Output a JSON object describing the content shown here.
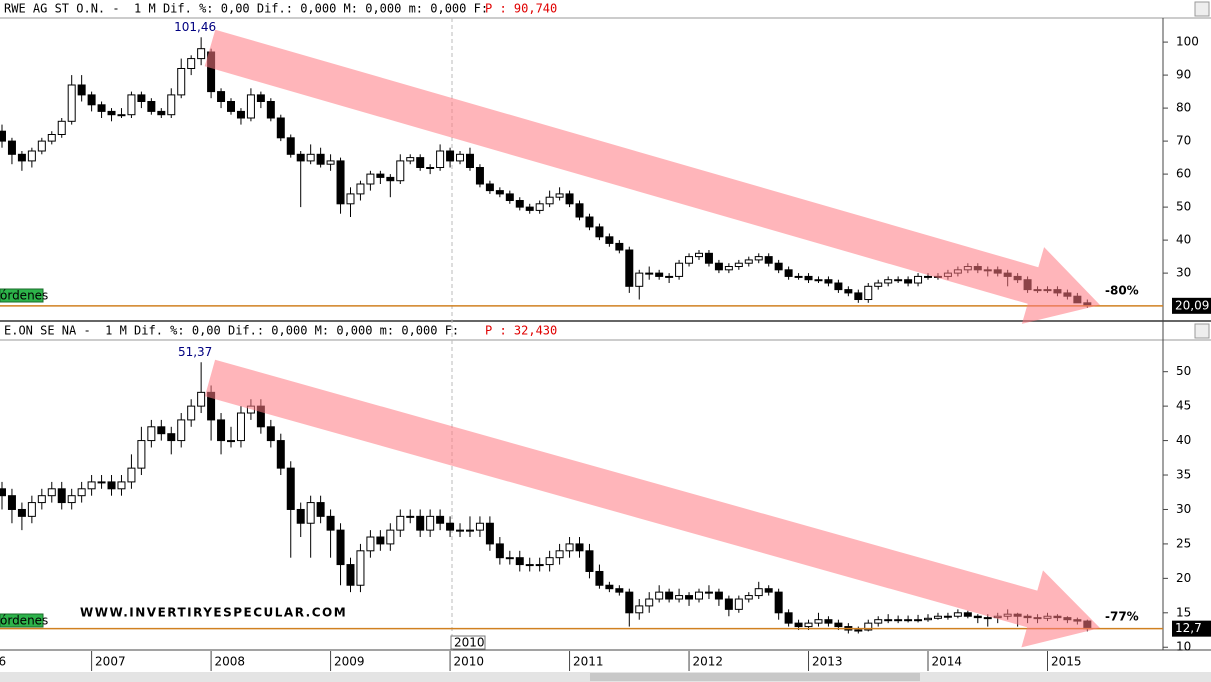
{
  "chart_data": [
    {
      "type": "candlestick",
      "title": "RWE AG ST O.N. -  1 M Dif. %: 0,00 Dif.: 0,000 M: 0,000 m: 0,000 F:",
      "price_label": "P : 90,740",
      "peak_label": "101,46",
      "change_label": "-80%",
      "last_price_label": "20,09",
      "order_label": "órdenes",
      "up_color": "#ffffff",
      "down_color": "#000000",
      "ylim": [
        16.4,
        107.3
      ],
      "yticks": [
        30,
        40,
        50,
        60,
        70,
        80,
        90,
        100
      ],
      "candles": [
        [
          73,
          75,
          68,
          70
        ],
        [
          70,
          71,
          63,
          66
        ],
        [
          66,
          67,
          61,
          64
        ],
        [
          64,
          68,
          62,
          67
        ],
        [
          67,
          71,
          66,
          70
        ],
        [
          70,
          73,
          69,
          72
        ],
        [
          72,
          77,
          71,
          76
        ],
        [
          76,
          90,
          75,
          87
        ],
        [
          87,
          90,
          82,
          84
        ],
        [
          84,
          85,
          79,
          81
        ],
        [
          81,
          82,
          77,
          79
        ],
        [
          79,
          80,
          76,
          78
        ],
        [
          78,
          80,
          77,
          78
        ],
        [
          78,
          85,
          77,
          84
        ],
        [
          84,
          85,
          80,
          82
        ],
        [
          82,
          83,
          78,
          79
        ],
        [
          79,
          80,
          77,
          78
        ],
        [
          78,
          86,
          77,
          84
        ],
        [
          84,
          95,
          83,
          92
        ],
        [
          92,
          96,
          90,
          95
        ],
        [
          95,
          101.46,
          93,
          98
        ],
        [
          97,
          98,
          83,
          85
        ],
        [
          85,
          86,
          80,
          82
        ],
        [
          82,
          83,
          78,
          79
        ],
        [
          79,
          80,
          75,
          77
        ],
        [
          77,
          86,
          76,
          84
        ],
        [
          84,
          85,
          80,
          82
        ],
        [
          82,
          83,
          76,
          77
        ],
        [
          77,
          78,
          70,
          71
        ],
        [
          71,
          72,
          65,
          66
        ],
        [
          66,
          67,
          50,
          64
        ],
        [
          64,
          69,
          63,
          66
        ],
        [
          66,
          68,
          62,
          63
        ],
        [
          63,
          66,
          61,
          64
        ],
        [
          64,
          65,
          48,
          51
        ],
        [
          51,
          56,
          47,
          54
        ],
        [
          54,
          58,
          52,
          57
        ],
        [
          57,
          61,
          55,
          60
        ],
        [
          60,
          61,
          57,
          59
        ],
        [
          59,
          60,
          53,
          58
        ],
        [
          58,
          66,
          57,
          64
        ],
        [
          64,
          66,
          63,
          65
        ],
        [
          65,
          66,
          61,
          62
        ],
        [
          62,
          63,
          60,
          62
        ],
        [
          62,
          69,
          61,
          67
        ],
        [
          67,
          68,
          62,
          64
        ],
        [
          64,
          67,
          63,
          66
        ],
        [
          66,
          68,
          61,
          62
        ],
        [
          62,
          63,
          56,
          57
        ],
        [
          57,
          58,
          54,
          55
        ],
        [
          55,
          56,
          53,
          54
        ],
        [
          54,
          55,
          51,
          52
        ],
        [
          52,
          53,
          49,
          50
        ],
        [
          50,
          51,
          48,
          49
        ],
        [
          49,
          52,
          48,
          51
        ],
        [
          51,
          55,
          50,
          53
        ],
        [
          53,
          56,
          52,
          54
        ],
        [
          54,
          55,
          50,
          51
        ],
        [
          51,
          52,
          46,
          47
        ],
        [
          47,
          48,
          43,
          44
        ],
        [
          44,
          45,
          40,
          41
        ],
        [
          41,
          42,
          38,
          39
        ],
        [
          39,
          40,
          36,
          37
        ],
        [
          37,
          38,
          24,
          26
        ],
        [
          26,
          31,
          22,
          30
        ],
        [
          30,
          32,
          28,
          30
        ],
        [
          30,
          31,
          28,
          29
        ],
        [
          29,
          30,
          27,
          29
        ],
        [
          29,
          34,
          28,
          33
        ],
        [
          33,
          36,
          32,
          35
        ],
        [
          35,
          37,
          34,
          36
        ],
        [
          36,
          37,
          32,
          33
        ],
        [
          33,
          34,
          30,
          31
        ],
        [
          31,
          33,
          30,
          32
        ],
        [
          32,
          34,
          31,
          33
        ],
        [
          33,
          35,
          32,
          34
        ],
        [
          34,
          36,
          33,
          35
        ],
        [
          35,
          36,
          32,
          33
        ],
        [
          33,
          34,
          30,
          31
        ],
        [
          31,
          32,
          28,
          29
        ],
        [
          29,
          30,
          28,
          29
        ],
        [
          29,
          30,
          27,
          28
        ],
        [
          28,
          29,
          27,
          28
        ],
        [
          28,
          29,
          26,
          27
        ],
        [
          27,
          28,
          24,
          25
        ],
        [
          25,
          26,
          23,
          24
        ],
        [
          24,
          25,
          21,
          22
        ],
        [
          22,
          27,
          21,
          26
        ],
        [
          26,
          28,
          25,
          27
        ],
        [
          27,
          29,
          26,
          28
        ],
        [
          28,
          29,
          27,
          28
        ],
        [
          28,
          29,
          26,
          27
        ],
        [
          27,
          30,
          26,
          29
        ],
        [
          29,
          30,
          28,
          29
        ],
        [
          29,
          30,
          28,
          29
        ],
        [
          29,
          31,
          28,
          30
        ],
        [
          30,
          32,
          29,
          31
        ],
        [
          31,
          33,
          30,
          32
        ],
        [
          32,
          33,
          30,
          31
        ],
        [
          31,
          32,
          29,
          31
        ],
        [
          31,
          32,
          29,
          30
        ],
        [
          30,
          31,
          26,
          29
        ],
        [
          29,
          30,
          27,
          28
        ],
        [
          28,
          29,
          24,
          25
        ],
        [
          25,
          26,
          24,
          25
        ],
        [
          25,
          26,
          24,
          25
        ],
        [
          25,
          26,
          23,
          24
        ],
        [
          24,
          25,
          22,
          23
        ],
        [
          23,
          24,
          21,
          21
        ],
        [
          21,
          22,
          19.5,
          20.09
        ]
      ]
    },
    {
      "type": "candlestick",
      "title": "E.ON SE NA -  1 M Dif. %: 0,00 Dif.: 0,000 M: 0,000 m: 0,000 F:",
      "price_label": "P : 32,430",
      "peak_label": "51,37",
      "change_label": "-77%",
      "last_price_label": "12,7",
      "order_label": "órdenes",
      "watermark": "WWW.INVERTIRYESPECULAR.COM",
      "cursor_label": "2010",
      "up_color": "#ffffff",
      "down_color": "#000000",
      "ylim": [
        9.6,
        54.6
      ],
      "yticks": [
        10,
        15,
        20,
        25,
        30,
        35,
        40,
        45,
        50
      ],
      "xlim": [
        -0.2,
        116.6
      ],
      "xticks": [
        {
          "value": -3,
          "label": "6"
        },
        {
          "value": 9,
          "label": "2007"
        },
        {
          "value": 21,
          "label": "2008"
        },
        {
          "value": 33,
          "label": "2009"
        },
        {
          "value": 45,
          "label": "2010"
        },
        {
          "value": 57,
          "label": "2011"
        },
        {
          "value": 69,
          "label": "2012"
        },
        {
          "value": 81,
          "label": "2013"
        },
        {
          "value": 93,
          "label": "2014"
        },
        {
          "value": 105,
          "label": "2015"
        }
      ],
      "candles": [
        [
          33,
          34,
          30,
          32
        ],
        [
          32,
          33,
          28,
          30
        ],
        [
          30,
          31,
          27,
          29
        ],
        [
          29,
          32,
          28,
          31
        ],
        [
          31,
          33,
          30,
          32
        ],
        [
          32,
          34,
          31,
          33
        ],
        [
          33,
          34,
          30,
          31
        ],
        [
          31,
          33,
          30,
          32
        ],
        [
          32,
          34,
          31,
          33
        ],
        [
          33,
          35,
          32,
          34
        ],
        [
          34,
          35,
          33,
          34
        ],
        [
          34,
          35,
          32,
          33
        ],
        [
          33,
          35,
          32,
          34
        ],
        [
          34,
          38,
          33,
          36
        ],
        [
          36,
          42,
          35,
          40
        ],
        [
          40,
          43,
          39,
          42
        ],
        [
          42,
          43,
          40,
          41
        ],
        [
          41,
          42,
          38,
          40
        ],
        [
          40,
          44,
          39,
          43
        ],
        [
          43,
          46,
          42,
          45
        ],
        [
          45,
          51.37,
          44,
          47
        ],
        [
          47,
          48,
          40,
          43
        ],
        [
          43,
          44,
          38,
          40
        ],
        [
          40,
          42,
          39,
          40
        ],
        [
          40,
          45,
          39,
          44
        ],
        [
          44,
          46,
          43,
          45
        ],
        [
          45,
          46,
          41,
          42
        ],
        [
          42,
          43,
          39,
          40
        ],
        [
          40,
          41,
          35,
          36
        ],
        [
          36,
          37,
          23,
          30
        ],
        [
          30,
          31,
          26,
          28
        ],
        [
          28,
          32,
          23,
          31
        ],
        [
          31,
          32,
          28,
          29
        ],
        [
          29,
          30,
          23,
          27
        ],
        [
          27,
          28,
          19,
          22
        ],
        [
          22,
          23,
          18,
          19
        ],
        [
          19,
          25,
          18,
          24
        ],
        [
          24,
          27,
          23,
          26
        ],
        [
          26,
          27,
          24,
          25
        ],
        [
          25,
          28,
          24,
          27
        ],
        [
          27,
          30,
          26,
          29
        ],
        [
          29,
          30,
          28,
          29
        ],
        [
          29,
          30,
          26,
          27
        ],
        [
          27,
          30,
          26,
          29
        ],
        [
          29,
          30,
          27,
          28
        ],
        [
          28,
          29,
          26,
          27
        ],
        [
          27,
          28,
          26,
          27
        ],
        [
          27,
          29,
          26,
          27
        ],
        [
          27,
          29,
          26,
          28
        ],
        [
          28,
          29,
          24,
          25
        ],
        [
          25,
          26,
          22,
          23
        ],
        [
          23,
          24,
          22,
          23
        ],
        [
          23,
          24,
          21,
          22
        ],
        [
          22,
          23,
          21,
          22
        ],
        [
          22,
          23,
          21,
          22
        ],
        [
          22,
          24,
          21,
          23
        ],
        [
          23,
          25,
          22,
          24
        ],
        [
          24,
          26,
          23,
          25
        ],
        [
          25,
          26,
          23,
          24
        ],
        [
          24,
          25,
          20,
          21
        ],
        [
          21,
          22,
          18.5,
          19
        ],
        [
          19,
          19.5,
          18,
          18.5
        ],
        [
          18.5,
          19,
          17.5,
          18
        ],
        [
          18,
          18.5,
          13,
          15
        ],
        [
          15,
          17,
          14,
          16
        ],
        [
          16,
          18,
          15,
          17
        ],
        [
          17,
          19,
          16.5,
          18
        ],
        [
          18,
          18.5,
          16.5,
          17
        ],
        [
          17,
          18.5,
          16.5,
          17.5
        ],
        [
          17.5,
          18,
          16,
          17
        ],
        [
          17,
          18.5,
          16.5,
          18
        ],
        [
          18,
          19,
          17,
          18
        ],
        [
          18,
          18.5,
          16,
          17
        ],
        [
          17,
          17.5,
          14.5,
          15.5
        ],
        [
          15.5,
          17.5,
          15,
          17
        ],
        [
          17,
          18,
          16.5,
          17.5
        ],
        [
          17.5,
          19.5,
          17,
          18.5
        ],
        [
          18.5,
          19,
          17.5,
          18
        ],
        [
          18,
          18.5,
          14,
          15
        ],
        [
          15,
          15.5,
          13,
          13.5
        ],
        [
          13.5,
          14,
          12.5,
          13
        ],
        [
          13,
          14,
          12.5,
          13.5
        ],
        [
          13.5,
          15,
          13,
          14
        ],
        [
          14,
          14.5,
          13,
          13.5
        ],
        [
          13.5,
          14,
          12.5,
          13
        ],
        [
          13,
          13.5,
          12,
          12.5
        ],
        [
          12.5,
          13,
          12,
          12.5
        ],
        [
          12.5,
          14,
          12.3,
          13.5
        ],
        [
          13.5,
          14.5,
          13,
          14
        ],
        [
          14,
          14.8,
          13.5,
          14
        ],
        [
          14,
          14.6,
          13.5,
          14
        ],
        [
          14,
          14.6,
          13.6,
          14
        ],
        [
          14,
          14.7,
          13.6,
          14
        ],
        [
          14,
          14.8,
          13.7,
          14.2
        ],
        [
          14.2,
          15,
          14,
          14.5
        ],
        [
          14.5,
          15,
          14,
          14.5
        ],
        [
          14.5,
          15.5,
          14.2,
          15
        ],
        [
          15,
          15.3,
          14.2,
          14.5
        ],
        [
          14.5,
          14.8,
          13.5,
          14.3
        ],
        [
          14.3,
          14.8,
          13,
          14.3
        ],
        [
          14.3,
          15,
          13.5,
          14.5
        ],
        [
          14.5,
          15.5,
          14,
          14.8
        ],
        [
          14.8,
          15,
          13,
          14.5
        ],
        [
          14.5,
          14.8,
          13.5,
          14.3
        ],
        [
          14.3,
          14.8,
          13.5,
          14.2
        ],
        [
          14.2,
          15,
          13.8,
          14.5
        ],
        [
          14.5,
          14.8,
          13.8,
          14.3
        ],
        [
          14.3,
          14.5,
          13.5,
          14
        ],
        [
          14,
          14.3,
          13.3,
          13.8
        ],
        [
          13.8,
          14,
          12.3,
          12.7
        ]
      ]
    }
  ]
}
